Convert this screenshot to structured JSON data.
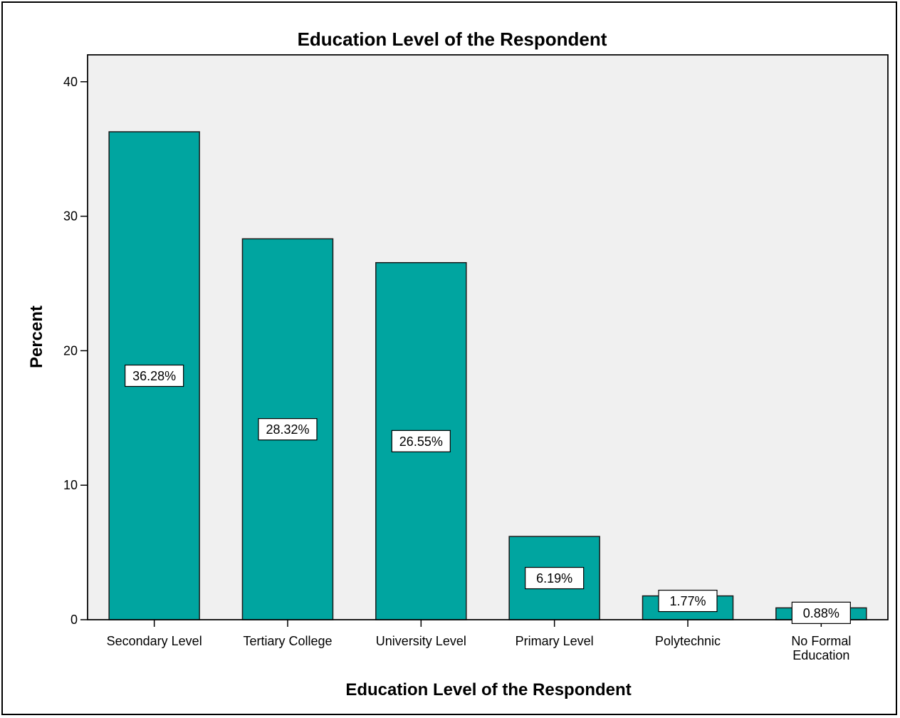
{
  "chart_data": {
    "type": "bar",
    "title": "Education Level of the Respondent",
    "xlabel": "Education Level of the Respondent",
    "ylabel": "Percent",
    "categories": [
      [
        "Secondary Level"
      ],
      [
        "Tertiary College"
      ],
      [
        "University Level"
      ],
      [
        "Primary Level"
      ],
      [
        "Polytechnic"
      ],
      [
        "No Formal",
        "Education"
      ]
    ],
    "values": [
      36.28,
      28.32,
      26.55,
      6.19,
      1.77,
      0.88
    ],
    "data_labels": [
      "36.28%",
      "28.32%",
      "26.55%",
      "6.19%",
      "1.77%",
      "0.88%"
    ],
    "ylim": [
      0,
      42
    ],
    "yticks": [
      0,
      10,
      20,
      30,
      40
    ],
    "grid": false,
    "legend": "none",
    "colors": {
      "bar_fill": "#00a5a0",
      "bar_stroke": "#1a1a1a",
      "plot_background": "#f0f0f0",
      "label_box": "#ffffff"
    }
  }
}
